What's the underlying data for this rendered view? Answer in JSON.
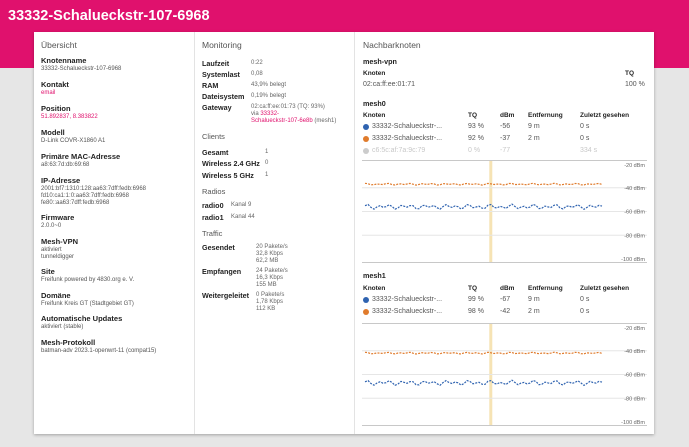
{
  "header": {
    "title": "33332-Schalueckstr-107-6968"
  },
  "overview": {
    "heading": "Übersicht",
    "fields": [
      {
        "label": "Knotenname",
        "value": "33332-Schalueckstr-107-6968"
      },
      {
        "label": "Kontakt",
        "value": "email"
      },
      {
        "label": "Position",
        "value": "51.892837, 8.383822"
      },
      {
        "label": "Modell",
        "value": "D-Link COVR-X1860 A1"
      },
      {
        "label": "Primäre MAC-Adresse",
        "value": "a8:63:7d:db:69:68"
      },
      {
        "label": "IP-Adresse",
        "lines": [
          "2001:bf7:1310:128:aa63:7dff:fedb:6968",
          "fd10:ca1:1:0:aa63:7dff:fedb:6968",
          "fe80::aa63:7dff:fedb:6968"
        ]
      },
      {
        "label": "Firmware",
        "value": "2.0.0~0"
      },
      {
        "label": "Mesh-VPN",
        "lines": [
          "aktiviert",
          "tunneldigger"
        ]
      },
      {
        "label": "Site",
        "value": "Freifunk powered by 4830.org e. V."
      },
      {
        "label": "Domäne",
        "value": "Freifunk Kreis GT (Stadtgebiet GT)"
      },
      {
        "label": "Automatische Updates",
        "value": "aktiviert (stable)"
      },
      {
        "label": "Mesh-Protokoll",
        "value": "batman-adv 2023.1-openwrt-11 (compat15)"
      }
    ]
  },
  "monitoring": {
    "heading": "Monitoring",
    "stats": [
      {
        "label": "Laufzeit",
        "value": "0:22"
      },
      {
        "label": "Systemlast",
        "value": "0,08"
      },
      {
        "label": "RAM",
        "value": "43,9% belegt"
      },
      {
        "label": "Dateisystem",
        "value": "0,19% belegt"
      }
    ],
    "gateway": {
      "label": "Gateway",
      "line1": "02:ca:ff:ee:01:73 (TQ: 93%)",
      "via": "via",
      "link": "33332-",
      "link2": "Schalueckstr-107-6e8b",
      "suffix": "(mesh1)"
    },
    "clients": {
      "heading": "Clients",
      "rows": [
        {
          "label": "Gesamt",
          "value": "1"
        },
        {
          "label": "Wireless 2.4 GHz",
          "value": "0"
        },
        {
          "label": "Wireless 5 GHz",
          "value": "1"
        }
      ]
    },
    "radios": {
      "heading": "Radios",
      "rows": [
        {
          "label": "radio0",
          "value": "Kanal 9"
        },
        {
          "label": "radio1",
          "value": "Kanal 44"
        }
      ]
    },
    "traffic": {
      "heading": "Traffic",
      "rows": [
        {
          "label": "Gesendet",
          "lines": [
            "20 Pakete/s",
            "32,8 Kbps",
            "62,2 MB"
          ]
        },
        {
          "label": "Empfangen",
          "lines": [
            "24 Pakete/s",
            "16,3 Kbps",
            "155 MB"
          ]
        },
        {
          "label": "Weitergeleitet",
          "lines": [
            "0 Pakete/s",
            "1,78 Kbps",
            "112 KB"
          ]
        }
      ]
    }
  },
  "neighbours": {
    "heading": "Nachbarknoten",
    "vpn": {
      "title": "mesh-vpn",
      "headers": [
        "Knoten",
        "TQ"
      ],
      "rows": [
        {
          "node": "02:ca:ff:ee:01:71",
          "tq": "100 %"
        }
      ]
    },
    "mesh0": {
      "title": "mesh0",
      "headers": [
        "Knoten",
        "TQ",
        "dBm",
        "Entfernung",
        "Zuletzt gesehen"
      ],
      "rows": [
        {
          "node": "33332-Schalueckstr-...",
          "tq": "93 %",
          "dbm": "-56",
          "dist": "9 m",
          "seen": "0 s",
          "color": "#2f63b0"
        },
        {
          "node": "33332-Schalueckstr-...",
          "tq": "92 %",
          "dbm": "-37",
          "dist": "2 m",
          "seen": "0 s",
          "color": "#e07b2c"
        },
        {
          "node": "c6:5c:af:7a:9c:79",
          "tq": "0 %",
          "dbm": "-77",
          "dist": "",
          "seen": "334 s",
          "color": "#cccccc"
        }
      ],
      "axis": [
        "-20 dBm",
        "-40 dBm",
        "-60 dBm",
        "-80 dBm",
        "-100 dBm"
      ]
    },
    "mesh1": {
      "title": "mesh1",
      "headers": [
        "Knoten",
        "TQ",
        "dBm",
        "Entfernung",
        "Zuletzt gesehen"
      ],
      "rows": [
        {
          "node": "33332-Schalueckstr-...",
          "tq": "99 %",
          "dbm": "-67",
          "dist": "9 m",
          "seen": "0 s",
          "color": "#2f63b0"
        },
        {
          "node": "33332-Schalueckstr-...",
          "tq": "98 %",
          "dbm": "-42",
          "dist": "2 m",
          "seen": "0 s",
          "color": "#e07b2c"
        }
      ],
      "axis": [
        "-20 dBm",
        "-40 dBm",
        "-60 dBm",
        "-80 dBm",
        "-100 dBm"
      ]
    }
  },
  "colors": {
    "brand": "#e0116d",
    "series_blue": "#2f63b0",
    "series_orange": "#e07b2c",
    "cursor": "#f6e3b4"
  }
}
